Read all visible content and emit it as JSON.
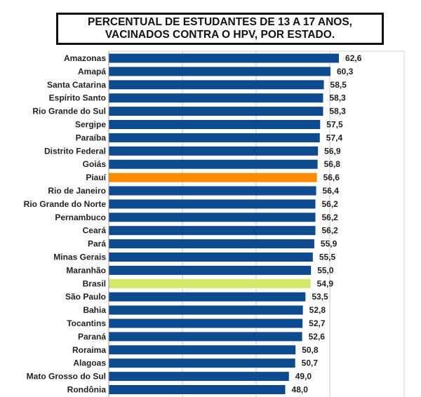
{
  "chart_data": {
    "type": "bar",
    "orientation": "horizontal",
    "title": "PERCENTUAL DE ESTUDANTES DE 13 A 17 ANOS,\nVACINADOS CONTRA O HPV, POR ESTADO.",
    "categories": [
      "Amazonas",
      "Amapá",
      "Santa Catarina",
      "Espírito Santo",
      "Rio Grande do Sul",
      "Sergipe",
      "Paraíba",
      "Distrito Federal",
      "Goiás",
      "Piauí",
      "Rio de Janeiro",
      "Rio Grande do Norte",
      "Pernambuco",
      "Ceará",
      "Pará",
      "Minas Gerais",
      "Maranhão",
      "Brasil",
      "São Paulo",
      "Bahia",
      "Tocantins",
      "Paraná",
      "Roraima",
      "Alagoas",
      "Mato Grosso do Sul",
      "Rondônia"
    ],
    "values": [
      62.6,
      60.3,
      58.5,
      58.3,
      58.3,
      57.5,
      57.4,
      56.9,
      56.8,
      56.6,
      56.4,
      56.2,
      56.2,
      56.2,
      55.9,
      55.5,
      55.0,
      54.9,
      53.5,
      52.8,
      52.7,
      52.6,
      50.8,
      50.7,
      49.0,
      48.0
    ],
    "value_labels": [
      "62,6",
      "60,3",
      "58,5",
      "58,3",
      "58,3",
      "57,5",
      "57,4",
      "56,9",
      "56,8",
      "56,6",
      "56,4",
      "56,2",
      "56,2",
      "56,2",
      "55,9",
      "55,5",
      "55,0",
      "54,9",
      "53,5",
      "52,8",
      "52,7",
      "52,6",
      "50,8",
      "50,7",
      "49,0",
      "48,0"
    ],
    "highlight": {
      "Piauí": "#ff8a00",
      "Brasil": "#d4e86b"
    },
    "default_color": "#0d4a8f",
    "grid": true,
    "xlabel": "",
    "ylabel": ""
  }
}
